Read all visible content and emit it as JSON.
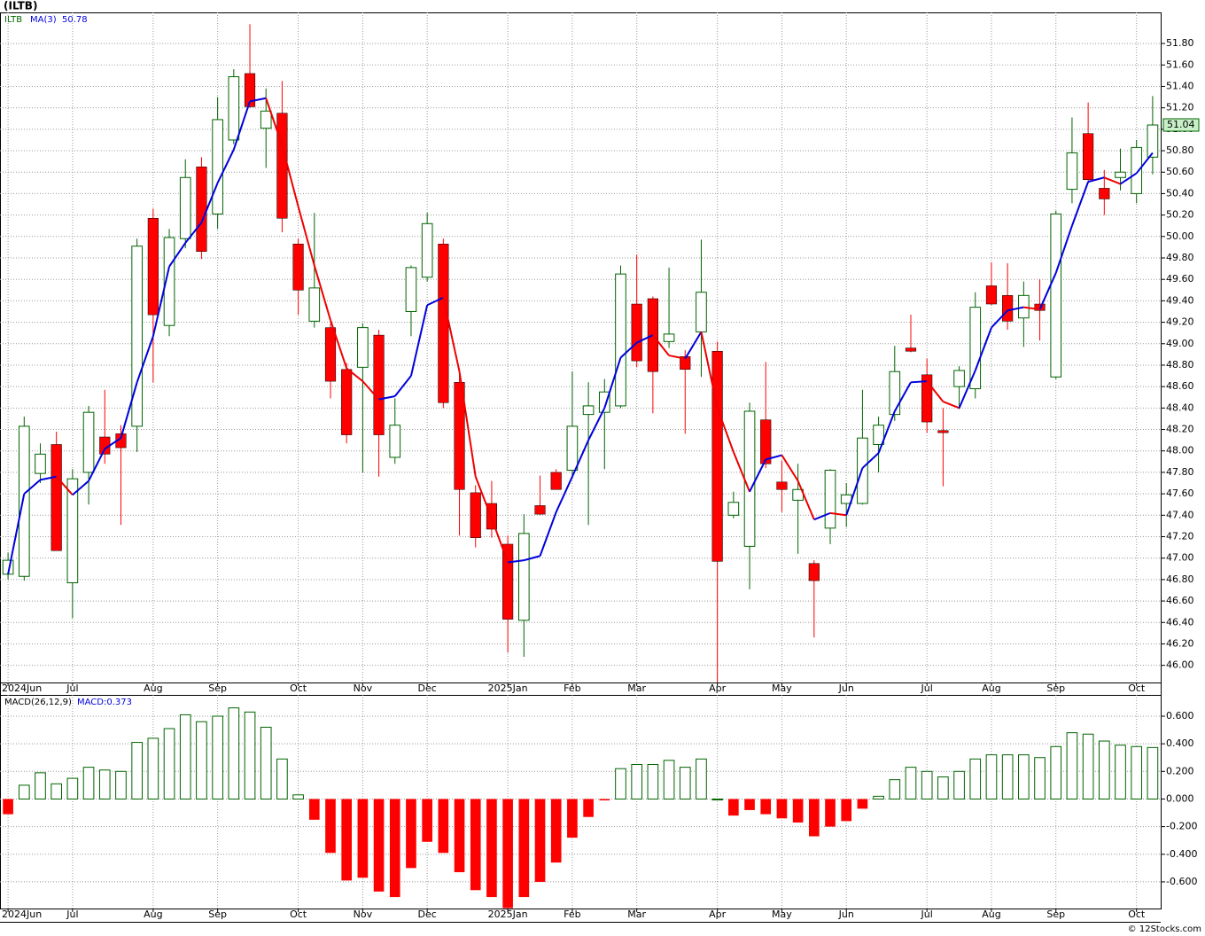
{
  "chart_data": [
    {
      "type": "candlestick",
      "title": "(ILTB)",
      "symbol": "ILTB",
      "categories": [
        "2024Jun",
        null,
        null,
        null,
        "Jul",
        null,
        null,
        null,
        null,
        "Aug",
        null,
        null,
        null,
        "Sep",
        null,
        null,
        null,
        null,
        "Oct",
        null,
        null,
        null,
        "Nov",
        null,
        null,
        null,
        "Dec",
        null,
        null,
        null,
        null,
        "2025Jan",
        null,
        null,
        null,
        "Feb",
        null,
        null,
        null,
        "Mar",
        null,
        null,
        null,
        null,
        "Apr",
        null,
        null,
        null,
        "May",
        null,
        null,
        null,
        "Jun",
        null,
        null,
        null,
        null,
        "Jul",
        null,
        null,
        null,
        "Aug",
        null,
        null,
        null,
        "Sep",
        null,
        null,
        null,
        null,
        "Oct",
        null
      ],
      "open": [
        46.85,
        46.83,
        47.79,
        48.06,
        46.77,
        47.8,
        48.13,
        48.16,
        48.23,
        50.17,
        49.17,
        49.98,
        50.65,
        50.21,
        50.9,
        51.52,
        51.01,
        51.15,
        49.93,
        49.21,
        49.15,
        48.76,
        48.78,
        49.08,
        47.94,
        49.3,
        49.62,
        49.93,
        48.64,
        47.61,
        47.51,
        47.13,
        46.42,
        47.49,
        47.8,
        47.82,
        48.34,
        48.36,
        48.42,
        49.37,
        49.42,
        49.02,
        48.88,
        49.11,
        48.93,
        47.4,
        47.11,
        48.29,
        47.71,
        47.54,
        46.95,
        47.28,
        47.51,
        47.51,
        48.06,
        48.34,
        48.96,
        48.71,
        48.19,
        48.6,
        48.58,
        49.54,
        49.45,
        49.24,
        49.37,
        48.69,
        50.44,
        50.96,
        50.45,
        50.55,
        50.4,
        50.74
      ],
      "high": [
        47.05,
        48.32,
        48.07,
        48.18,
        47.83,
        48.42,
        48.57,
        48.24,
        49.98,
        50.26,
        50.07,
        50.72,
        50.74,
        51.3,
        51.56,
        51.98,
        51.38,
        51.45,
        49.98,
        50.22,
        49.19,
        48.82,
        49.19,
        49.13,
        48.49,
        49.73,
        50.22,
        49.98,
        48.74,
        47.68,
        47.72,
        47.21,
        47.41,
        47.77,
        47.83,
        48.74,
        48.64,
        48.67,
        49.73,
        49.83,
        49.44,
        49.71,
        48.94,
        49.97,
        49.02,
        47.62,
        48.45,
        48.83,
        47.91,
        47.88,
        46.98,
        47.83,
        47.7,
        48.57,
        48.32,
        48.98,
        49.27,
        48.86,
        48.4,
        48.79,
        49.48,
        49.76,
        49.75,
        49.58,
        49.6,
        50.24,
        51.11,
        51.25,
        50.62,
        50.82,
        50.9,
        51.31
      ],
      "low": [
        46.8,
        46.79,
        47.7,
        47.07,
        46.44,
        47.5,
        47.88,
        47.31,
        47.99,
        48.64,
        49.07,
        49.89,
        49.79,
        50.07,
        50.86,
        51.2,
        50.64,
        50.04,
        49.27,
        49.15,
        48.49,
        48.07,
        47.8,
        47.76,
        47.88,
        49.07,
        49.58,
        48.4,
        47.21,
        47.1,
        47.19,
        46.12,
        46.08,
        47.4,
        47.64,
        47.74,
        47.31,
        47.83,
        48.4,
        48.78,
        48.35,
        48.96,
        48.16,
        48.69,
        45.84,
        47.37,
        46.71,
        47.84,
        47.43,
        47.04,
        46.26,
        47.13,
        47.29,
        47.5,
        47.8,
        48.28,
        48.92,
        48.17,
        47.67,
        48.39,
        48.49,
        49.36,
        49.13,
        48.97,
        49.03,
        48.67,
        50.31,
        50.51,
        50.2,
        50.43,
        50.31,
        50.58
      ],
      "close": [
        46.98,
        48.23,
        47.97,
        47.07,
        47.74,
        48.36,
        47.97,
        48.03,
        49.91,
        49.27,
        49.99,
        50.55,
        49.86,
        51.09,
        51.49,
        51.21,
        51.17,
        50.17,
        49.5,
        49.52,
        48.65,
        48.15,
        49.15,
        48.15,
        48.24,
        49.71,
        50.12,
        48.45,
        47.64,
        47.19,
        47.27,
        46.43,
        47.23,
        47.41,
        47.64,
        48.23,
        48.42,
        48.55,
        49.65,
        48.84,
        48.74,
        49.09,
        48.76,
        49.48,
        46.97,
        47.52,
        48.37,
        47.88,
        47.64,
        47.64,
        46.79,
        47.82,
        47.59,
        48.12,
        48.24,
        48.74,
        48.93,
        48.27,
        48.17,
        48.75,
        49.34,
        49.37,
        49.21,
        49.45,
        49.31,
        50.21,
        50.78,
        50.53,
        50.35,
        50.6,
        50.83,
        51.04
      ],
      "up_color": "#006400",
      "down_color": "#ff0000",
      "ma": {
        "name": "MA(3)",
        "rise_color": "#0000dd",
        "fall_color": "#ee0000",
        "values": [
          46.85,
          47.6,
          47.73,
          47.76,
          47.59,
          47.72,
          48.02,
          48.12,
          48.64,
          49.07,
          49.72,
          49.94,
          50.13,
          50.5,
          50.81,
          51.26,
          51.29,
          50.85,
          50.28,
          49.73,
          49.22,
          48.77,
          48.65,
          48.48,
          48.51,
          48.7,
          49.36,
          49.43,
          48.74,
          47.76,
          47.37,
          46.96,
          46.98,
          47.02,
          47.43,
          47.76,
          48.1,
          48.4,
          48.87,
          49.01,
          49.08,
          48.89,
          48.86,
          49.11,
          48.4,
          47.99,
          47.62,
          47.92,
          47.96,
          47.72,
          47.36,
          47.42,
          47.4,
          47.84,
          47.98,
          48.37,
          48.64,
          48.65,
          48.46,
          48.4,
          48.75,
          49.15,
          49.31,
          49.34,
          49.32,
          49.66,
          50.1,
          50.51,
          50.55,
          50.49,
          50.59,
          50.78
        ]
      },
      "ylim": [
        45.84,
        52.09
      ],
      "yticks": [
        {
          "value": 46.0,
          "label": "46.00"
        },
        {
          "value": 46.2,
          "label": "46.20"
        },
        {
          "value": 46.4,
          "label": "46.40"
        },
        {
          "value": 46.6,
          "label": "46.60"
        },
        {
          "value": 46.8,
          "label": "46.80"
        },
        {
          "value": 47.0,
          "label": "47.00"
        },
        {
          "value": 47.2,
          "label": "47.20"
        },
        {
          "value": 47.4,
          "label": "47.40"
        },
        {
          "value": 47.6,
          "label": "47.60"
        },
        {
          "value": 47.8,
          "label": "47.80"
        },
        {
          "value": 48.0,
          "label": "48.00"
        },
        {
          "value": 48.2,
          "label": "48.20"
        },
        {
          "value": 48.4,
          "label": "48.40"
        },
        {
          "value": 48.6,
          "label": "48.60"
        },
        {
          "value": 48.8,
          "label": "48.80"
        },
        {
          "value": 49.0,
          "label": "49.00"
        },
        {
          "value": 49.2,
          "label": "49.20"
        },
        {
          "value": 49.4,
          "label": "49.40"
        },
        {
          "value": 49.6,
          "label": "49.60"
        },
        {
          "value": 49.8,
          "label": "49.80"
        },
        {
          "value": 50.0,
          "label": "50.00"
        },
        {
          "value": 50.2,
          "label": "50.20"
        },
        {
          "value": 50.4,
          "label": "50.40"
        },
        {
          "value": 50.6,
          "label": "50.60"
        },
        {
          "value": 50.8,
          "label": "50.80"
        },
        {
          "value": 51.0,
          "label": "51.00"
        },
        {
          "value": 51.2,
          "label": "51.20"
        },
        {
          "value": 51.4,
          "label": "51.40"
        },
        {
          "value": 51.6,
          "label": "51.60"
        },
        {
          "value": 51.8,
          "label": "51.80"
        }
      ],
      "grid": true
    },
    {
      "type": "bar",
      "name": "MACD(26,12,9)",
      "legend": "MACD:0.373",
      "categories": [
        "2024Jun",
        null,
        null,
        null,
        "Jul",
        null,
        null,
        null,
        null,
        "Aug",
        null,
        null,
        null,
        "Sep",
        null,
        null,
        null,
        null,
        "Oct",
        null,
        null,
        null,
        "Nov",
        null,
        null,
        null,
        "Dec",
        null,
        null,
        null,
        null,
        "2025Jan",
        null,
        null,
        null,
        "Feb",
        null,
        null,
        null,
        "Mar",
        null,
        null,
        null,
        null,
        "Apr",
        null,
        null,
        null,
        "May",
        null,
        null,
        null,
        "Jun",
        null,
        null,
        null,
        null,
        "Jul",
        null,
        null,
        null,
        "Aug",
        null,
        null,
        null,
        "Sep",
        null,
        null,
        null,
        null,
        "Oct",
        null
      ],
      "values": [
        -0.11,
        0.1,
        0.19,
        0.11,
        0.15,
        0.23,
        0.21,
        0.2,
        0.41,
        0.44,
        0.51,
        0.61,
        0.56,
        0.6,
        0.66,
        0.63,
        0.52,
        0.29,
        0.03,
        -0.15,
        -0.39,
        -0.59,
        -0.57,
        -0.67,
        -0.71,
        -0.5,
        -0.31,
        -0.39,
        -0.53,
        -0.66,
        -0.71,
        -0.79,
        -0.71,
        -0.6,
        -0.46,
        -0.28,
        -0.13,
        -0.01,
        0.22,
        0.25,
        0.25,
        0.28,
        0.23,
        0.29,
        0.0,
        -0.12,
        -0.08,
        -0.11,
        -0.14,
        -0.17,
        -0.27,
        -0.2,
        -0.16,
        -0.07,
        0.02,
        0.14,
        0.23,
        0.2,
        0.16,
        0.2,
        0.29,
        0.32,
        0.32,
        0.32,
        0.3,
        0.38,
        0.48,
        0.47,
        0.42,
        0.39,
        0.38,
        0.373
      ],
      "positive_color": "#006400",
      "negative_color": "#ff0000",
      "ylim": [
        -0.793,
        0.754
      ],
      "yticks": [
        {
          "value": -0.6,
          "label": "-0.600"
        },
        {
          "value": -0.4,
          "label": "-0.400"
        },
        {
          "value": -0.2,
          "label": "-0.200"
        },
        {
          "value": 0,
          "label": "0.000"
        },
        {
          "value": 0.2,
          "label": "0.200"
        },
        {
          "value": 0.4,
          "label": "0.400"
        },
        {
          "value": 0.6,
          "label": "0.600"
        }
      ],
      "grid": true
    }
  ],
  "footer": "© 12Stocks.com"
}
